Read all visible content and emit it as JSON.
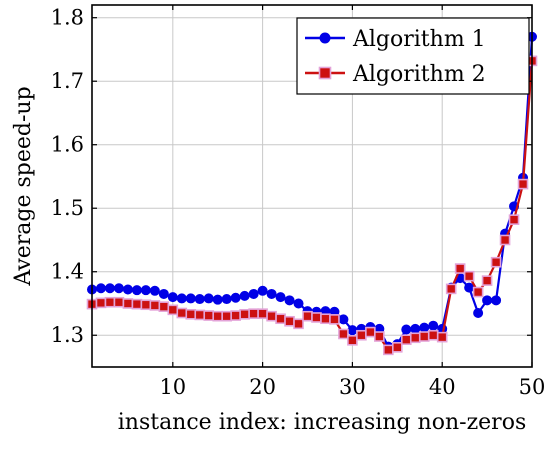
{
  "chart_data": {
    "type": "line",
    "title": "",
    "xlabel": "instance index: increasing non-zeros",
    "ylabel": "Average speed-up",
    "xlim": [
      1,
      50
    ],
    "ylim": [
      1.25,
      1.82
    ],
    "xticks": [
      10,
      20,
      30,
      40,
      50
    ],
    "yticks": [
      1.3,
      1.4,
      1.5,
      1.6,
      1.7,
      1.8
    ],
    "grid": true,
    "legend_position": "top-right",
    "x": [
      1,
      2,
      3,
      4,
      5,
      6,
      7,
      8,
      9,
      10,
      11,
      12,
      13,
      14,
      15,
      16,
      17,
      18,
      19,
      20,
      21,
      22,
      23,
      24,
      25,
      26,
      27,
      28,
      29,
      30,
      31,
      32,
      33,
      34,
      35,
      36,
      37,
      38,
      39,
      40,
      41,
      42,
      43,
      44,
      45,
      46,
      47,
      48,
      49,
      50
    ],
    "series": [
      {
        "name": "Algorithm 1",
        "color": "#0000e6",
        "marker": "circle",
        "values": [
          1.372,
          1.374,
          1.374,
          1.374,
          1.372,
          1.371,
          1.371,
          1.37,
          1.365,
          1.36,
          1.358,
          1.358,
          1.357,
          1.358,
          1.356,
          1.357,
          1.359,
          1.362,
          1.365,
          1.37,
          1.365,
          1.36,
          1.355,
          1.35,
          1.338,
          1.337,
          1.338,
          1.337,
          1.325,
          1.308,
          1.31,
          1.313,
          1.31,
          1.282,
          1.286,
          1.309,
          1.31,
          1.312,
          1.315,
          1.31,
          1.375,
          1.39,
          1.375,
          1.335,
          1.355,
          1.355,
          1.46,
          1.503,
          1.548,
          1.77
        ]
      },
      {
        "name": "Algorithm 2",
        "color": "#cc1111",
        "marker": "square",
        "values": [
          1.349,
          1.351,
          1.352,
          1.352,
          1.35,
          1.349,
          1.348,
          1.347,
          1.345,
          1.34,
          1.335,
          1.333,
          1.332,
          1.331,
          1.33,
          1.33,
          1.331,
          1.333,
          1.334,
          1.334,
          1.33,
          1.326,
          1.322,
          1.318,
          1.33,
          1.328,
          1.326,
          1.325,
          1.302,
          1.292,
          1.3,
          1.305,
          1.298,
          1.277,
          1.281,
          1.293,
          1.296,
          1.298,
          1.3,
          1.297,
          1.373,
          1.405,
          1.393,
          1.368,
          1.386,
          1.415,
          1.45,
          1.482,
          1.538,
          1.732
        ]
      }
    ]
  }
}
